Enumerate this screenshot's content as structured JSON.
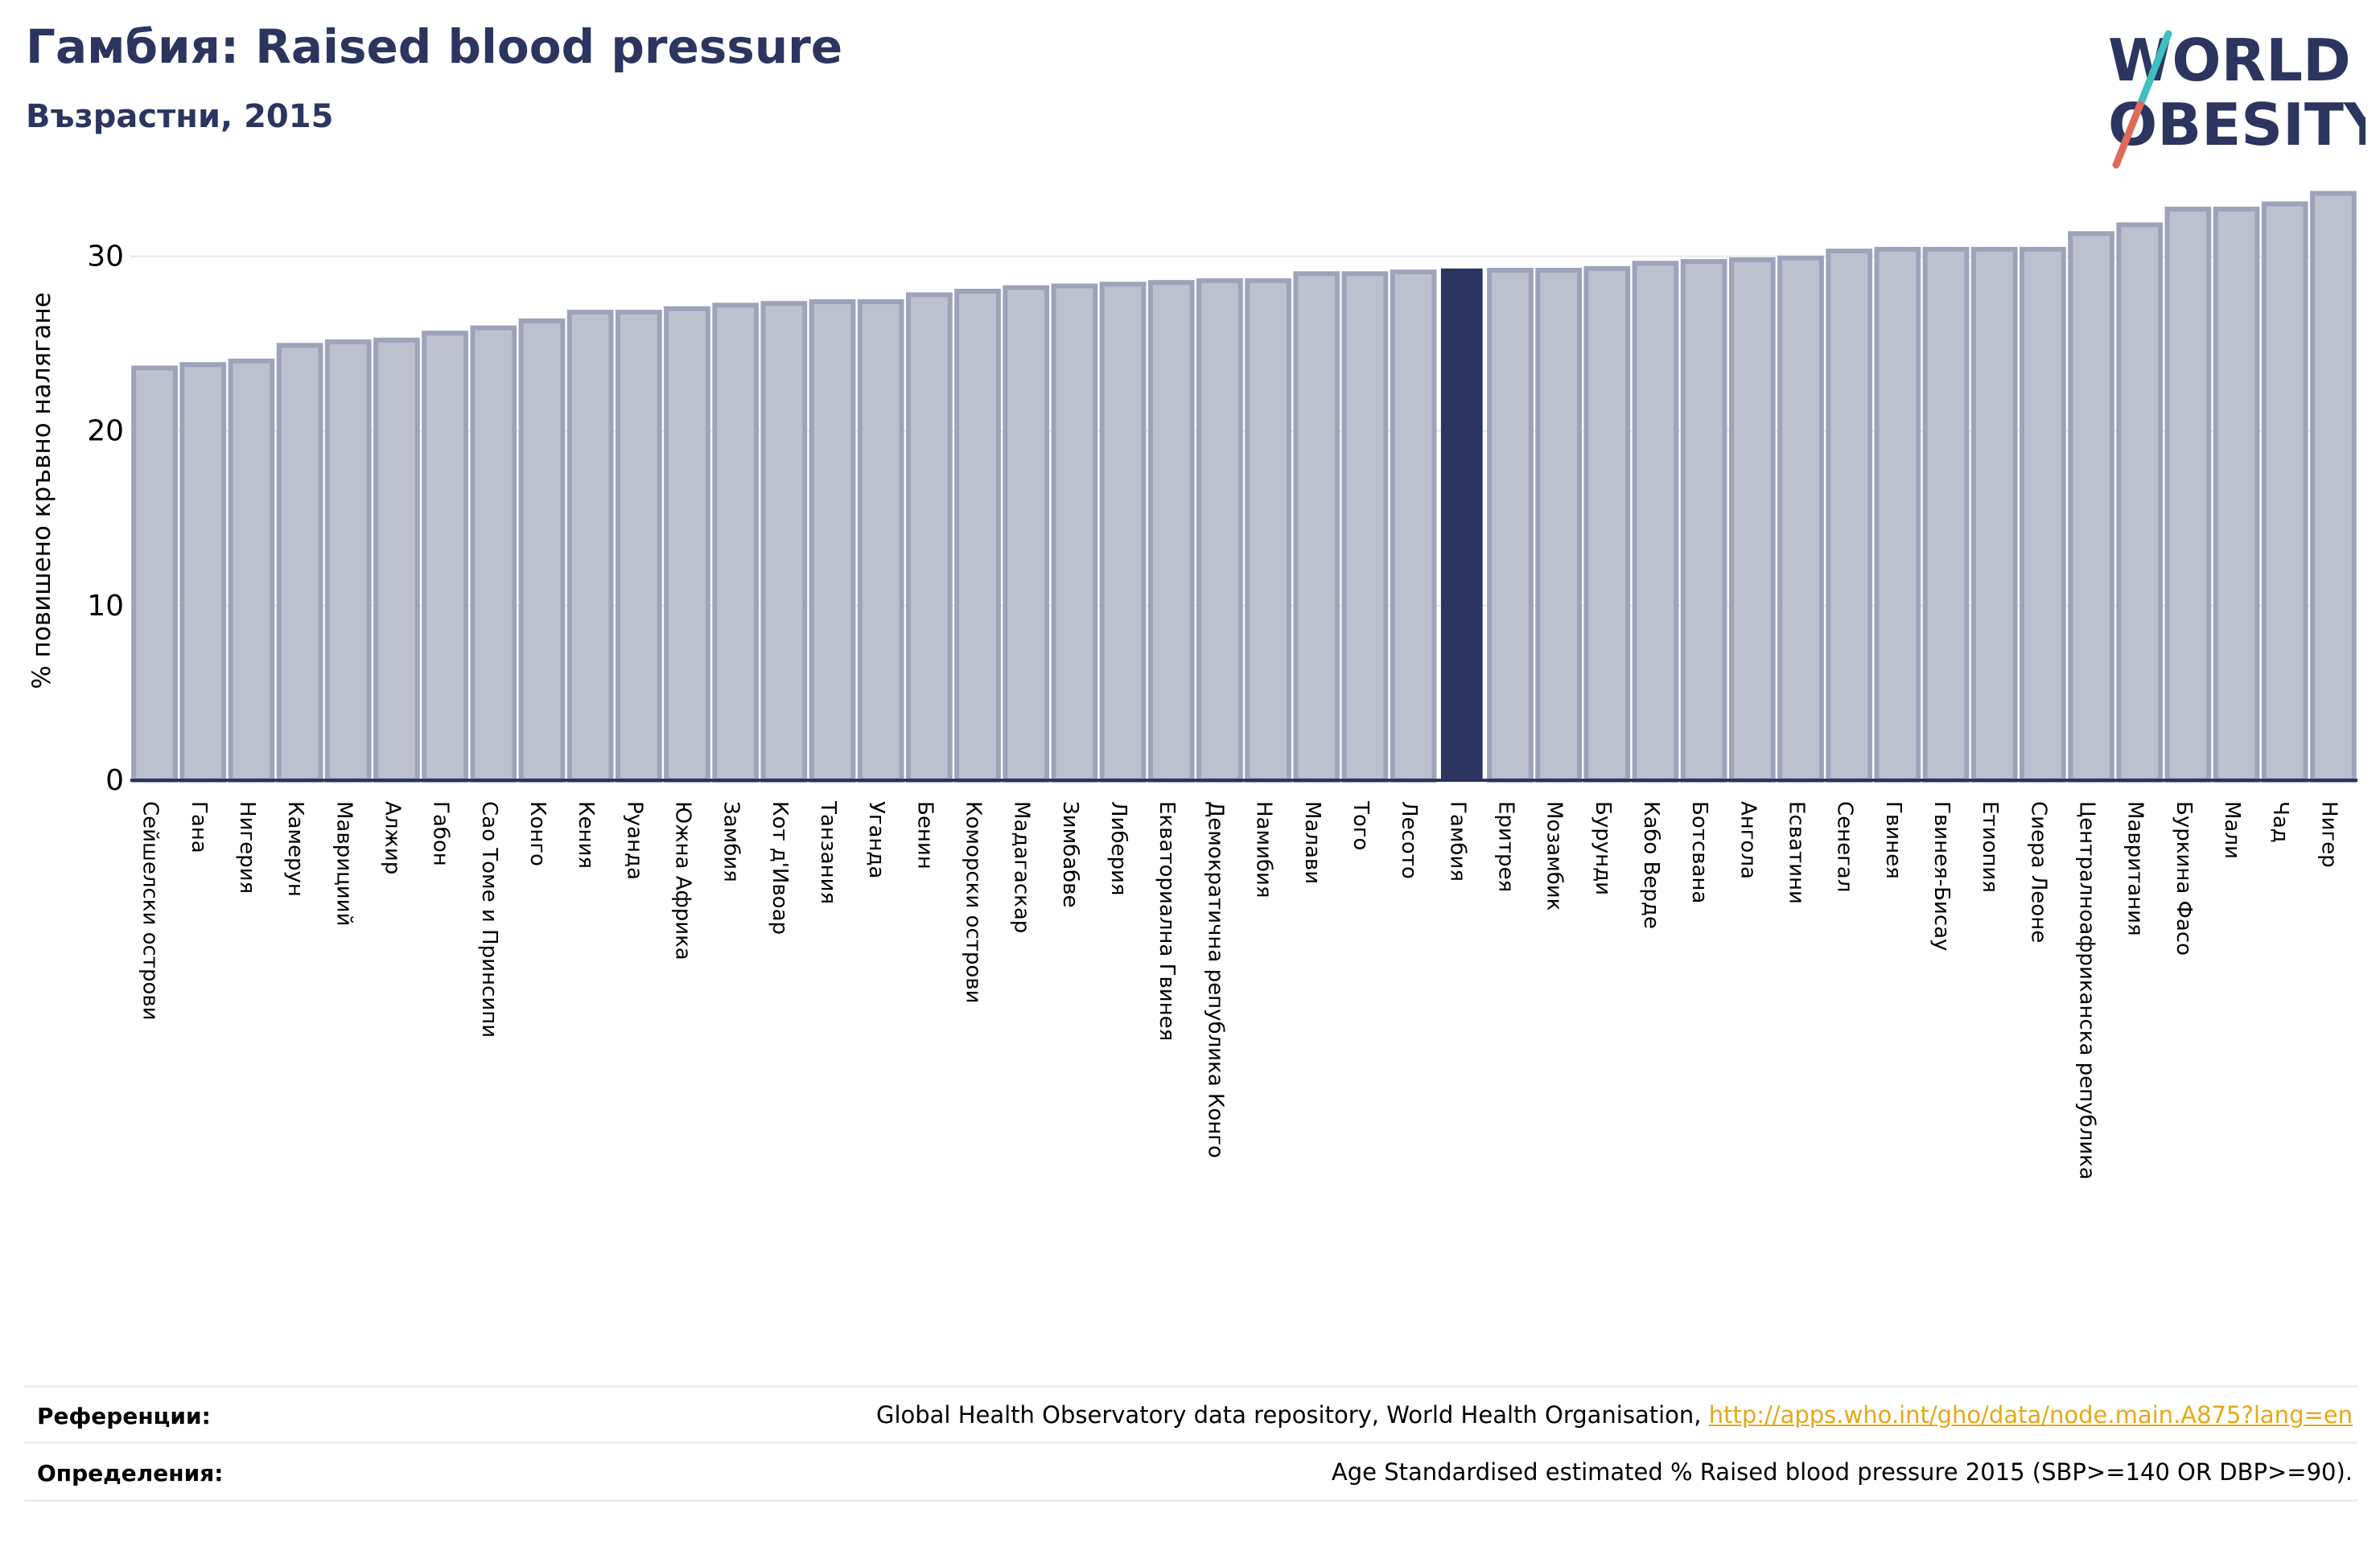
{
  "header": {
    "title": "Гамбия: Raised blood pressure",
    "subtitle": "Възрастни, 2015"
  },
  "logo": {
    "line1": "WORLD",
    "line2": "OBESITY"
  },
  "chart_data": {
    "type": "bar",
    "ylabel": "% повишено кръвно налягане",
    "ylim": [
      0,
      35
    ],
    "yticks": [
      0,
      10,
      20,
      30
    ],
    "grid": true,
    "highlight": "Гамбия",
    "colors": {
      "bar": "#bdc0cf",
      "bar_edge": "#9ea3bb",
      "highlight": "#2b355f"
    },
    "categories": [
      "Сейшелски острови",
      "Гана",
      "Нигерия",
      "Камерун",
      "Маврициий",
      "Алжир",
      "Габон",
      "Сао Томе и Принсипи",
      "Конго",
      "Кения",
      "Руанда",
      "Южна Африка",
      "Замбия",
      "Кот д'Ивоар",
      "Танзания",
      "Уганда",
      "Бенин",
      "Коморски острови",
      "Мадагаскар",
      "Зимбабве",
      "Либерия",
      "Екваториална Гвинея",
      "Демократична република Конго",
      "Намибия",
      "Малави",
      "Того",
      "Лесото",
      "Гамбия",
      "Еритрея",
      "Мозамбик",
      "Бурунди",
      "Кабо Верде",
      "Ботсвана",
      "Ангола",
      "Есватини",
      "Сенегал",
      "Гвинея",
      "Гвинея-Бисау",
      "Етиопия",
      "Сиера Леоне",
      "Централноафриканска република",
      "Мавритания",
      "Буркина Фасо",
      "Мали",
      "Чад",
      "Нигер"
    ],
    "values": [
      23.6,
      23.8,
      24.0,
      24.9,
      25.1,
      25.2,
      25.6,
      25.9,
      26.3,
      26.8,
      26.8,
      27.0,
      27.2,
      27.3,
      27.4,
      27.4,
      27.8,
      28.0,
      28.2,
      28.3,
      28.4,
      28.5,
      28.6,
      28.6,
      29.0,
      29.0,
      29.1,
      29.3,
      29.2,
      29.2,
      29.3,
      29.6,
      29.7,
      29.8,
      29.9,
      30.3,
      30.4,
      30.4,
      30.4,
      30.4,
      31.3,
      31.8,
      32.7,
      32.7,
      33.0,
      33.6
    ]
  },
  "footer": {
    "references_label": "Референции:",
    "references_text": "Global Health Observatory data repository, World Health Organisation, ",
    "references_link": "http://apps.who.int/gho/data/node.main.A875?lang=en",
    "definitions_label": "Определения:",
    "definitions_text": "Age Standardised estimated % Raised blood pressure 2015 (SBP>=140 OR DBP>=90)."
  }
}
